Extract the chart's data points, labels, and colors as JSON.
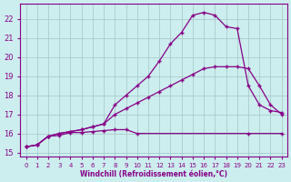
{
  "xlabel": "Windchill (Refroidissement éolien,°C)",
  "bg_color": "#cceeee",
  "grid_color": "#aacccc",
  "line_color": "#880088",
  "xlim": [
    -0.5,
    23.5
  ],
  "ylim": [
    14.8,
    22.8
  ],
  "xticks": [
    0,
    1,
    2,
    3,
    4,
    5,
    6,
    7,
    8,
    9,
    10,
    11,
    12,
    13,
    14,
    15,
    16,
    17,
    18,
    19,
    20,
    21,
    22,
    23
  ],
  "yticks": [
    15,
    16,
    17,
    18,
    19,
    20,
    21,
    22
  ],
  "line1_x": [
    0,
    1,
    2,
    3,
    4,
    5,
    6,
    7,
    8,
    9,
    10,
    20,
    23
  ],
  "line1_y": [
    15.3,
    15.4,
    15.85,
    15.9,
    16.05,
    16.05,
    16.1,
    16.15,
    16.2,
    16.2,
    16.0,
    16.0,
    16.0
  ],
  "line2_x": [
    0,
    1,
    2,
    3,
    4,
    5,
    6,
    7,
    8,
    9,
    10,
    11,
    12,
    13,
    14,
    15,
    16,
    17,
    18,
    19,
    20,
    21,
    22,
    23
  ],
  "line2_y": [
    15.3,
    15.4,
    15.85,
    16.0,
    16.1,
    16.2,
    16.35,
    16.5,
    17.0,
    17.3,
    17.6,
    17.9,
    18.2,
    18.5,
    18.8,
    19.1,
    19.4,
    19.5,
    19.5,
    19.5,
    19.4,
    18.5,
    17.5,
    17.0
  ],
  "line3_x": [
    0,
    1,
    2,
    3,
    4,
    5,
    6,
    7,
    8,
    9,
    10,
    11,
    12,
    13,
    14,
    15,
    16,
    17,
    18,
    19,
    20,
    21,
    22,
    23
  ],
  "line3_y": [
    15.3,
    15.4,
    15.85,
    16.0,
    16.1,
    16.2,
    16.35,
    16.5,
    17.5,
    18.0,
    18.5,
    19.0,
    19.8,
    20.7,
    21.3,
    22.2,
    22.35,
    22.2,
    21.6,
    21.5,
    18.5,
    17.5,
    17.2,
    17.1
  ]
}
